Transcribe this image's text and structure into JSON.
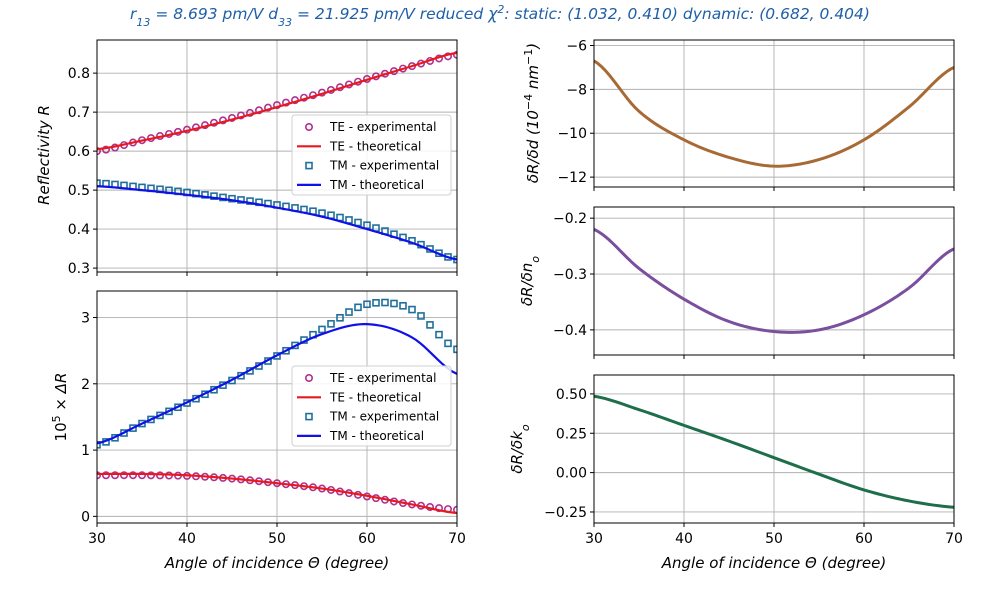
{
  "figure_title": "r13 = 8.693 pm/V   d33 = 21.925 pm/V   reduced χ2: static: (1.032, 0.410)   dynamic: (0.682, 0.404)",
  "title_parts": {
    "r13_sym": "r",
    "r13_sub": "13",
    "r13_val": " = 8.693 pm/V",
    "d33_sym": "d",
    "d33_sub": "33",
    "d33_val": " = 21.925 pm/V",
    "chi_label": "reduced χ",
    "chi_sup": "2",
    "chi_rest": ": static: (1.032, 0.410)   dynamic: (0.682, 0.404)"
  },
  "colors": {
    "title": "#1f5fa8",
    "te_marker": "#b0308f",
    "te_line": "#e8191e",
    "tm_marker": "#1f6f9c",
    "tm_line": "#1010e8",
    "d_line": "#a86a35",
    "no_line": "#7a4f9e",
    "ko_line": "#1e6e4a",
    "grid": "#b0b0b0"
  },
  "chart_data": [
    {
      "id": "reflectivity",
      "type": "scatter+line",
      "xlabel": "",
      "ylabel": "Reflectivity R",
      "xlim": [
        30,
        70
      ],
      "ylim": [
        0.29,
        0.885
      ],
      "xticks": [
        30,
        40,
        50,
        60,
        70
      ],
      "xtick_labels": [
        "",
        "",
        "",
        "",
        ""
      ],
      "yticks": [
        0.3,
        0.4,
        0.5,
        0.6,
        0.7,
        0.8
      ],
      "ytick_labels": [
        "0.3",
        "0.4",
        "0.5",
        "0.6",
        "0.7",
        "0.8"
      ],
      "grid": true,
      "legend": [
        "TE - experimental",
        "TE - theoretical",
        "TM - experimental",
        "TM - theoretical"
      ],
      "legend_position": "center-right",
      "x": [
        30,
        35,
        40,
        45,
        50,
        55,
        60,
        65,
        70
      ],
      "series": [
        {
          "name": "TE - experimental",
          "style": "marker-circle",
          "color_key": "te_marker",
          "values": [
            0.6,
            0.628,
            0.655,
            0.685,
            0.718,
            0.75,
            0.785,
            0.818,
            0.847
          ]
        },
        {
          "name": "TE - theoretical",
          "style": "line",
          "color_key": "te_line",
          "values": [
            0.605,
            0.627,
            0.652,
            0.681,
            0.713,
            0.747,
            0.783,
            0.818,
            0.852
          ]
        },
        {
          "name": "TM - experimental",
          "style": "marker-square",
          "color_key": "tm_marker",
          "values": [
            0.518,
            0.507,
            0.494,
            0.478,
            0.462,
            0.441,
            0.41,
            0.37,
            0.322
          ]
        },
        {
          "name": "TM - theoretical",
          "style": "line",
          "color_key": "tm_line",
          "values": [
            0.51,
            0.5,
            0.488,
            0.474,
            0.455,
            0.432,
            0.4,
            0.365,
            0.322
          ]
        }
      ]
    },
    {
      "id": "delta_r",
      "type": "scatter+line",
      "xlabel": "Angle of incidence Θ (degree)",
      "ylabel": "10^5 × ΔR",
      "xlim": [
        30,
        70
      ],
      "ylim": [
        -0.1,
        3.4
      ],
      "xticks": [
        30,
        40,
        50,
        60,
        70
      ],
      "xtick_labels": [
        "30",
        "40",
        "50",
        "60",
        "70"
      ],
      "yticks": [
        0,
        1,
        2,
        3
      ],
      "ytick_labels": [
        "0",
        "1",
        "2",
        "3"
      ],
      "grid": true,
      "legend": [
        "TE - experimental",
        "TE - theoretical",
        "TM - experimental",
        "TM - theoretical"
      ],
      "legend_position": "center-right",
      "x": [
        30,
        35,
        40,
        45,
        50,
        55,
        60,
        65,
        70
      ],
      "series": [
        {
          "name": "TE - experimental",
          "style": "marker-circle",
          "color_key": "te_marker",
          "values": [
            0.62,
            0.62,
            0.61,
            0.57,
            0.5,
            0.42,
            0.3,
            0.18,
            0.1
          ]
        },
        {
          "name": "TE - theoretical",
          "style": "line",
          "color_key": "te_line",
          "values": [
            0.64,
            0.64,
            0.62,
            0.57,
            0.5,
            0.42,
            0.31,
            0.18,
            0.05
          ]
        },
        {
          "name": "TM - experimental",
          "style": "marker-square",
          "color_key": "tm_marker",
          "values": [
            1.08,
            1.4,
            1.71,
            2.05,
            2.42,
            2.82,
            3.2,
            3.12,
            2.52
          ]
        },
        {
          "name": "TM - theoretical",
          "style": "line",
          "color_key": "tm_line",
          "values": [
            1.1,
            1.4,
            1.72,
            2.06,
            2.43,
            2.75,
            2.9,
            2.7,
            2.15
          ]
        }
      ]
    },
    {
      "id": "dR_dd",
      "type": "line",
      "xlabel": "",
      "ylabel": "δR/δd (10^-4 nm^-1)",
      "xlim": [
        30,
        70
      ],
      "ylim": [
        -12.45,
        -5.75
      ],
      "xticks": [
        30,
        40,
        50,
        60,
        70
      ],
      "xtick_labels": [
        "",
        "",
        "",
        "",
        ""
      ],
      "yticks": [
        -12,
        -10,
        -8,
        -6
      ],
      "ytick_labels": [
        "−12",
        "−10",
        "−8",
        "−6"
      ],
      "grid": true,
      "x": [
        30,
        35,
        40,
        45,
        50,
        55,
        60,
        65,
        70
      ],
      "series": [
        {
          "name": "dR/dd",
          "style": "line",
          "color_key": "d_line",
          "values": [
            -6.7,
            -9.0,
            -10.3,
            -11.1,
            -11.5,
            -11.2,
            -10.3,
            -8.8,
            -7.0
          ]
        }
      ]
    },
    {
      "id": "dR_dno",
      "type": "line",
      "xlabel": "",
      "ylabel": "δR/δno",
      "xlim": [
        30,
        70
      ],
      "ylim": [
        -0.445,
        -0.18
      ],
      "xticks": [
        30,
        40,
        50,
        60,
        70
      ],
      "xtick_labels": [
        "",
        "",
        "",
        "",
        ""
      ],
      "yticks": [
        -0.4,
        -0.3,
        -0.2
      ],
      "ytick_labels": [
        "−0.4",
        "−0.3",
        "−0.2"
      ],
      "grid": true,
      "x": [
        30,
        35,
        40,
        45,
        50,
        55,
        60,
        65,
        70
      ],
      "series": [
        {
          "name": "dR/dno",
          "style": "line",
          "color_key": "no_line",
          "values": [
            -0.22,
            -0.29,
            -0.345,
            -0.385,
            -0.403,
            -0.4,
            -0.373,
            -0.325,
            -0.255
          ]
        }
      ]
    },
    {
      "id": "dR_dko",
      "type": "line",
      "xlabel": "Angle of incidence Θ (degree)",
      "ylabel": "δR/δko",
      "xlim": [
        30,
        70
      ],
      "ylim": [
        -0.32,
        0.62
      ],
      "xticks": [
        30,
        40,
        50,
        60,
        70
      ],
      "xtick_labels": [
        "30",
        "40",
        "50",
        "60",
        "70"
      ],
      "yticks": [
        -0.25,
        0.0,
        0.25,
        0.5
      ],
      "ytick_labels": [
        "−0.25",
        "0.00",
        "0.25",
        "0.50"
      ],
      "grid": true,
      "x": [
        30,
        35,
        40,
        45,
        50,
        55,
        60,
        65,
        70
      ],
      "series": [
        {
          "name": "dR/dko",
          "style": "line",
          "color_key": "ko_line",
          "values": [
            0.485,
            0.4,
            0.3,
            0.2,
            0.095,
            -0.01,
            -0.11,
            -0.18,
            -0.22
          ]
        }
      ]
    }
  ]
}
